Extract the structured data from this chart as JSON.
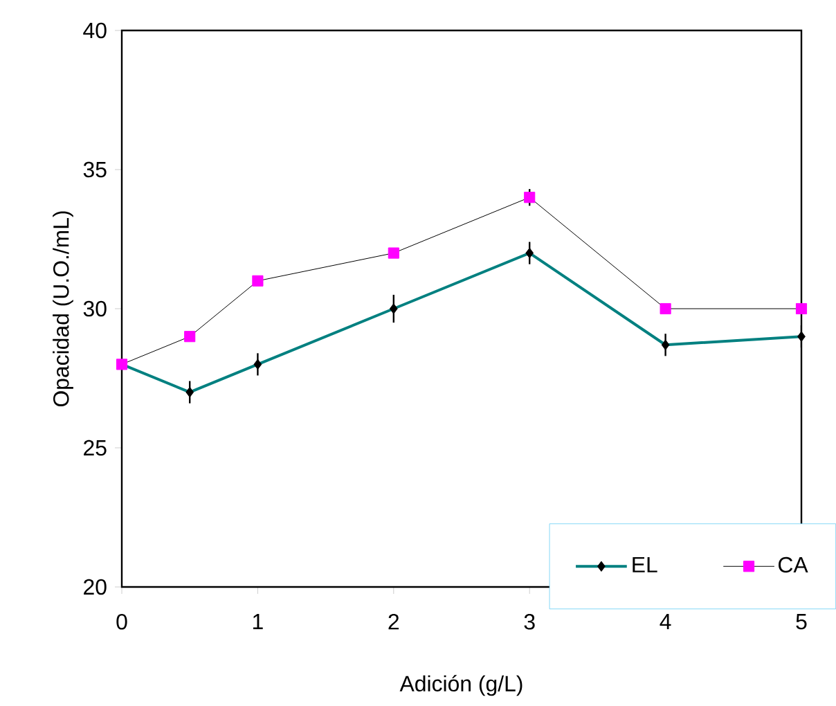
{
  "chart_data": {
    "type": "line",
    "xlabel": "Adición (g/L)",
    "ylabel": "Opacidad (U.O./mL)",
    "x": [
      0,
      0.5,
      1,
      2,
      3,
      4,
      5
    ],
    "xlim": [
      0,
      5
    ],
    "xticks": [
      0,
      1,
      2,
      3,
      4,
      5
    ],
    "ylim": [
      20,
      40
    ],
    "yticks": [
      20,
      25,
      30,
      35,
      40
    ],
    "grid": false,
    "legend": "bottom right",
    "series": [
      {
        "name": "EL",
        "color": "#008080",
        "marker": "diamond",
        "values": [
          28,
          27,
          28,
          30,
          32,
          28.7,
          29
        ],
        "errors": [
          null,
          0.4,
          0.4,
          0.5,
          0.4,
          0.4,
          0.4
        ]
      },
      {
        "name": "CA",
        "color": "#ff00ff",
        "marker": "square",
        "values": [
          28,
          29,
          31,
          32,
          34,
          30,
          30
        ],
        "errors": [
          null,
          null,
          null,
          null,
          0.3,
          null,
          null
        ]
      }
    ]
  }
}
